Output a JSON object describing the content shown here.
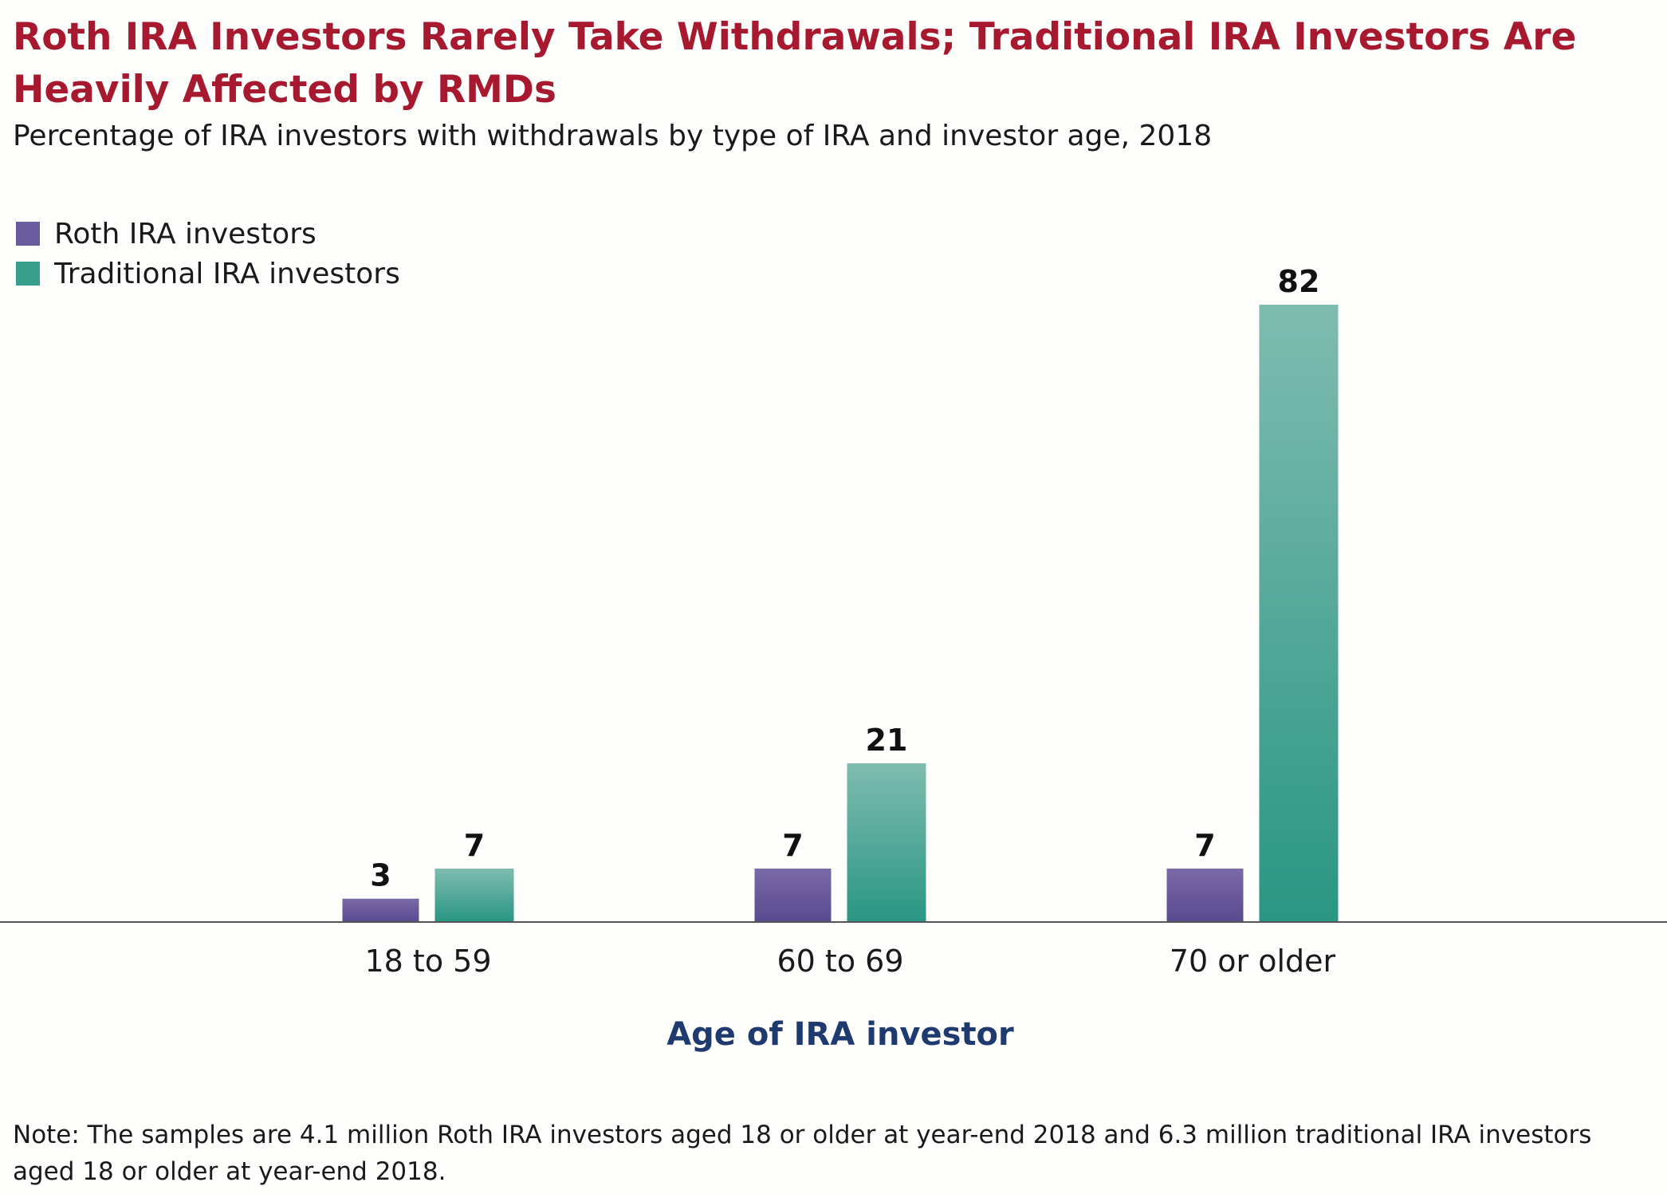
{
  "title": "Roth IRA Investors Rarely Take Withdrawals; Traditional IRA Investors Are Heavily Affected by RMDs",
  "subtitle": "Percentage of IRA investors with withdrawals by type of IRA and investor age, 2018",
  "note": "Note: The samples are 4.1 million Roth IRA investors aged 18 or older at year-end 2018 and 6.3 million traditional IRA investors aged 18 or older at year-end 2018.",
  "colors": {
    "title": "#a6192e",
    "xlabel": "#1f3a6e",
    "roth_top": "#7a6aa8",
    "roth_bottom": "#5a4a90",
    "traditional_top": "#7fbcb0",
    "traditional_bottom": "#2a9683"
  },
  "chart_data": {
    "type": "bar",
    "title": "Roth IRA Investors Rarely Take Withdrawals; Traditional IRA Investors Are Heavily Affected by RMDs",
    "subtitle": "Percentage of IRA investors with withdrawals by type of IRA and investor age, 2018",
    "xlabel": "Age of IRA investor",
    "ylabel": "",
    "categories": [
      "18 to 59",
      "60 to 69",
      "70 or older"
    ],
    "series": [
      {
        "name": "Roth IRA investors",
        "values": [
          3,
          7,
          7
        ]
      },
      {
        "name": "Traditional IRA investors",
        "values": [
          7,
          21,
          82
        ]
      }
    ],
    "ylim": [
      0,
      82
    ],
    "data_labels": true,
    "grid": false,
    "legend_position": "top-left"
  }
}
